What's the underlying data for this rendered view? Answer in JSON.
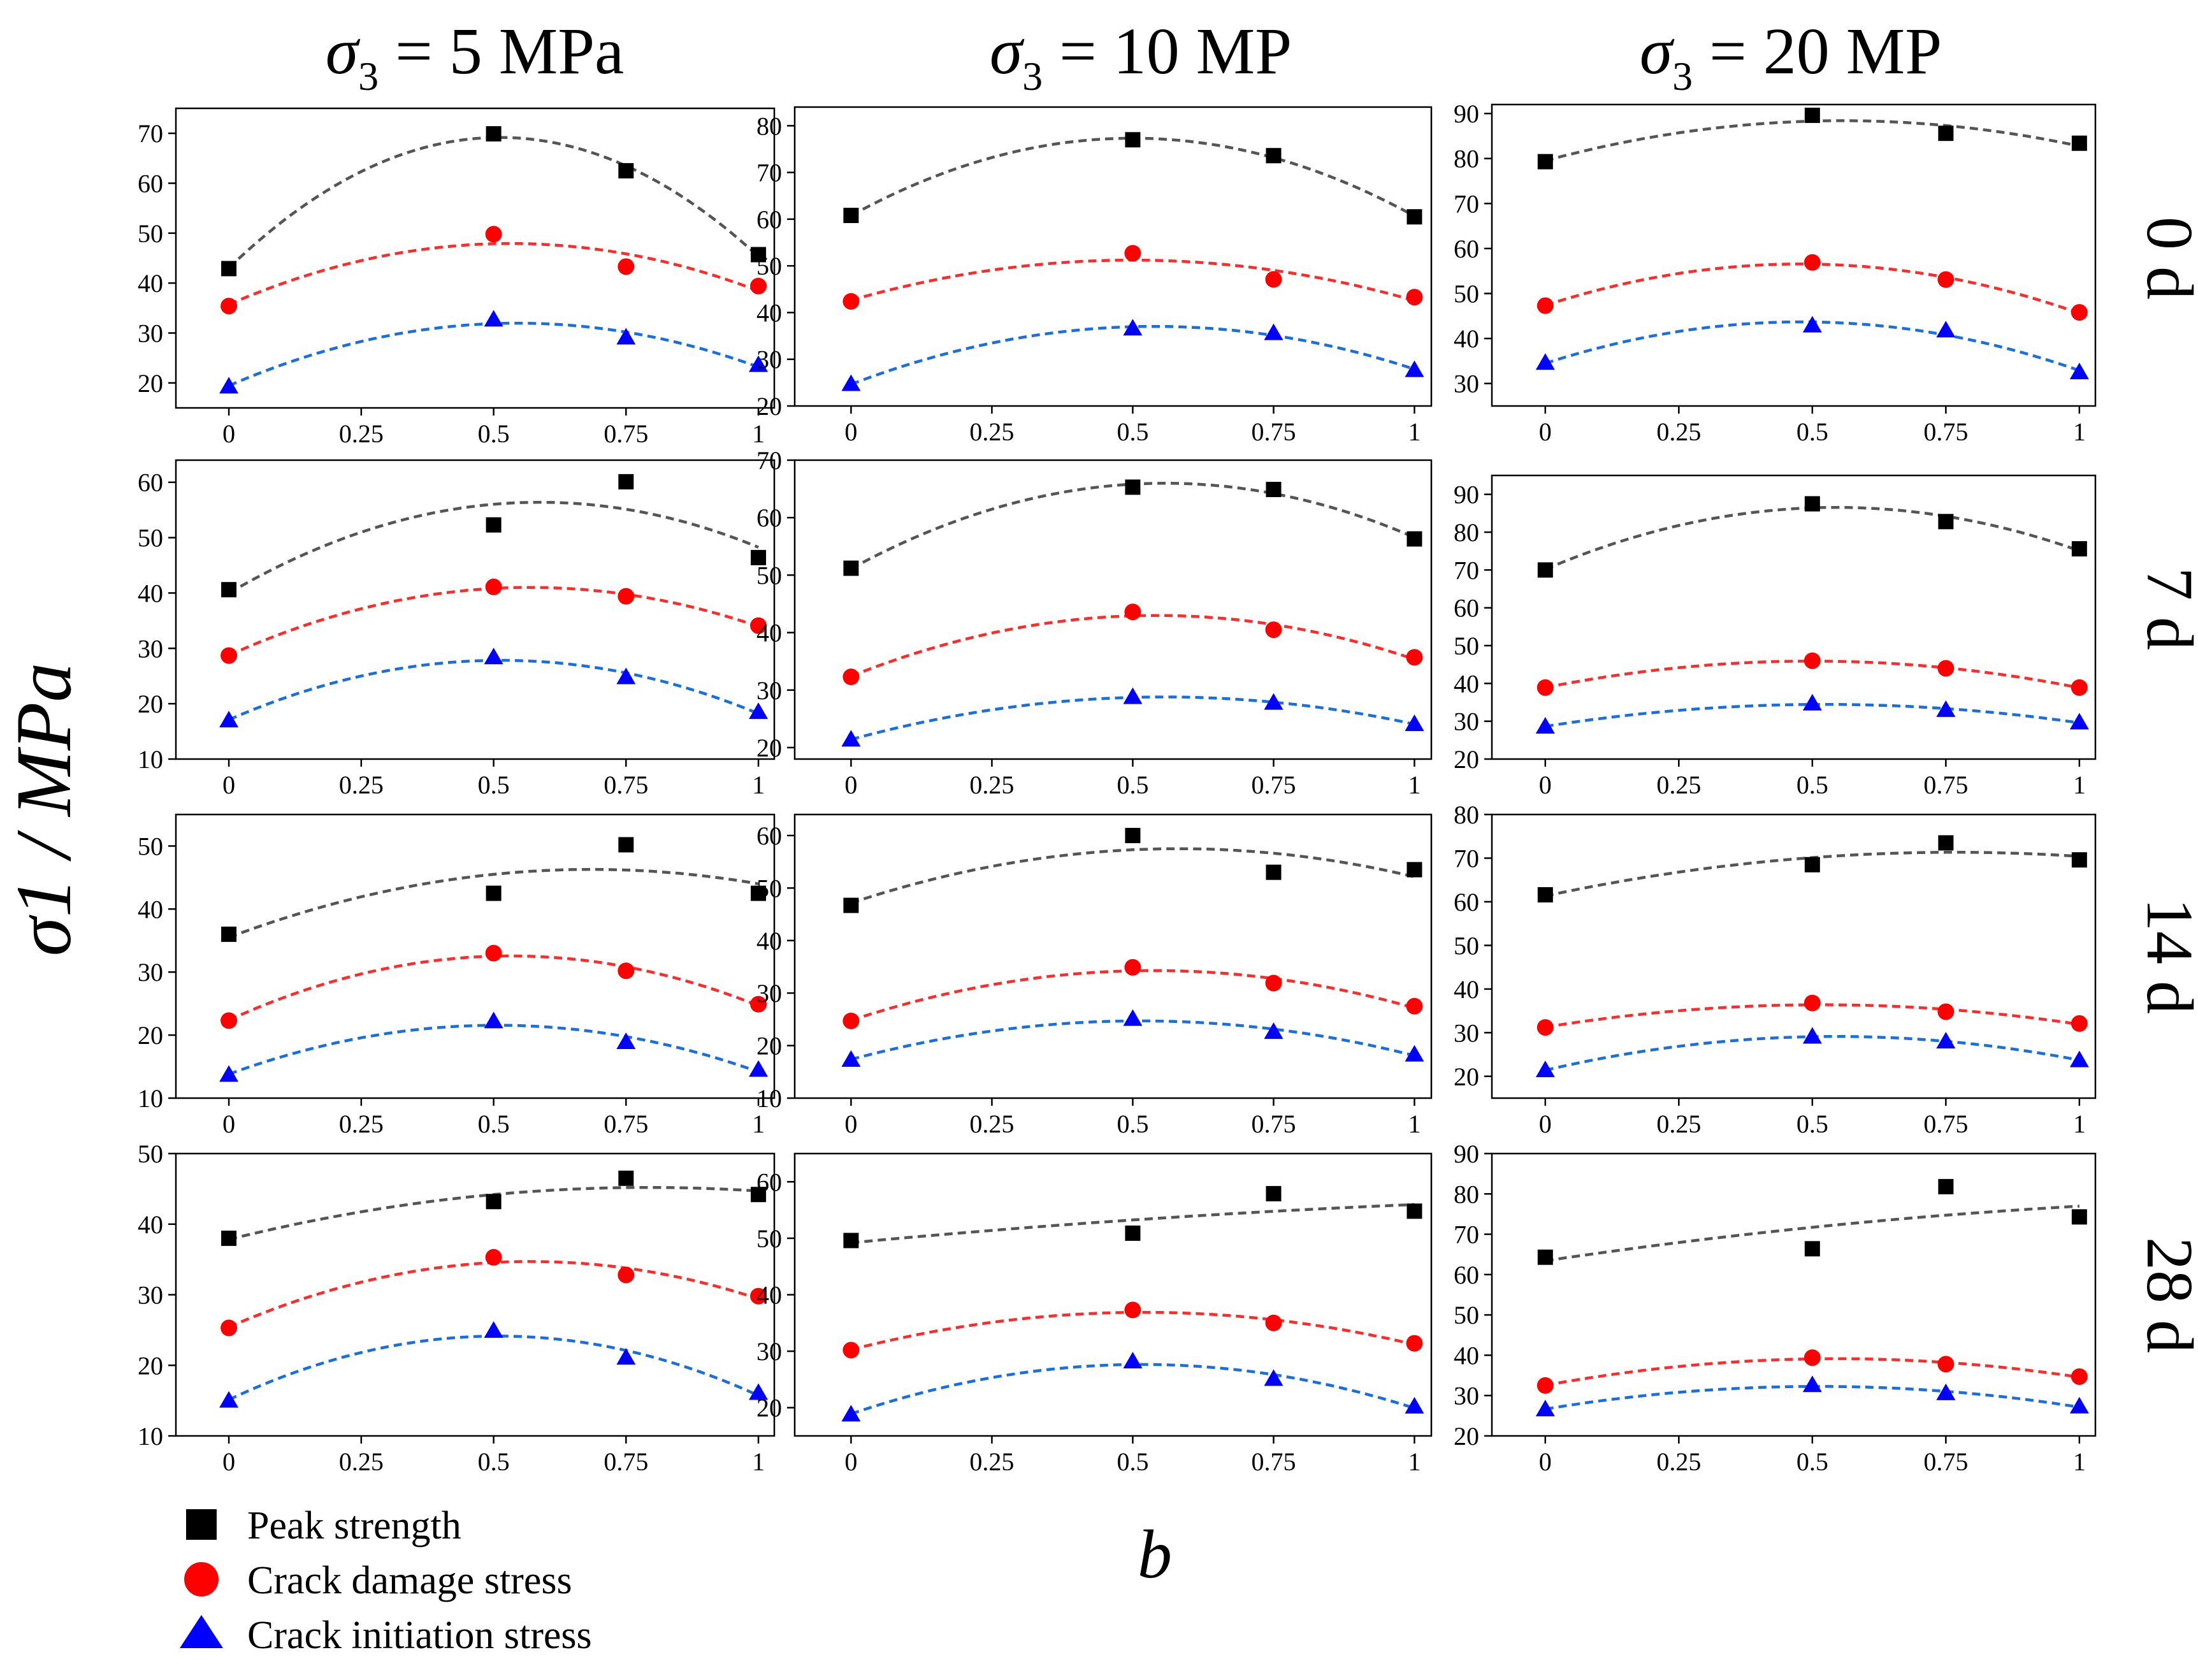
{
  "chart_data": {
    "type": "scatter",
    "layout": "grid",
    "x_label": "b",
    "y_label": "σ1 / MPa",
    "x_ticks": [
      0,
      0.25,
      0.5,
      0.75,
      1
    ],
    "x_tick_labels": [
      "0",
      "0.25",
      "0.5",
      "0.75",
      "1"
    ],
    "x_range": [
      -0.1,
      1.03
    ],
    "columns": [
      {
        "sym": "σ",
        "sub": "3",
        "rest": " = 5 MPa"
      },
      {
        "sym": "σ",
        "sub": "3",
        "rest": " = 10 MP"
      },
      {
        "sym": "σ",
        "sub": "3",
        "rest": " = 20 MP"
      }
    ],
    "rows": [
      "0 d",
      "7 d",
      "14 d",
      "28 d"
    ],
    "legend": [
      {
        "name": "Peak strength",
        "marker": "square",
        "color": "#000000"
      },
      {
        "name": "Crack damage stress",
        "marker": "circle",
        "color": "#ff0000"
      },
      {
        "name": "Crack initiation stress",
        "marker": "triangle",
        "color": "#0000ff"
      }
    ],
    "series_colors": {
      "peak_line": "#555555",
      "damage": "#ff2a2a",
      "initiation": "#1a6fe0"
    },
    "x": [
      0,
      0.5,
      0.75,
      1
    ],
    "panels": [
      {
        "row": 0,
        "col": 0,
        "ylim": [
          15,
          75
        ],
        "yticks": [
          20,
          30,
          40,
          50,
          60,
          70
        ],
        "peak": [
          42.9,
          69.9,
          62.5,
          45.7
        ],
        "damage": [
          35.4,
          49.8,
          43.3,
          39.4
        ],
        "initiation": [
          19.3,
          32.7,
          29.1,
          23.6
        ]
      },
      {
        "row": 0,
        "col": 1,
        "ylim": [
          20,
          84
        ],
        "yticks": [
          20,
          30,
          40,
          50,
          60,
          70,
          80
        ],
        "peak": [
          60.8,
          77.0,
          73.6,
          60.5
        ],
        "damage": [
          42.4,
          52.7,
          47.1,
          43.3
        ],
        "initiation": [
          24.7,
          36.6,
          35.6,
          27.7
        ]
      },
      {
        "row": 0,
        "col": 2,
        "ylim": [
          25,
          92
        ],
        "yticks": [
          30,
          40,
          50,
          60,
          70,
          80,
          90
        ],
        "peak": [
          79.3,
          89.6,
          85.6,
          83.4
        ],
        "damage": [
          47.3,
          56.9,
          53.1,
          45.8
        ],
        "initiation": [
          34.6,
          42.9,
          41.8,
          32.5
        ]
      },
      {
        "row": 1,
        "col": 0,
        "ylim": [
          10,
          64
        ],
        "yticks": [
          10,
          20,
          30,
          40,
          50,
          60
        ],
        "peak": [
          40.6,
          52.3,
          60.1,
          46.4
        ],
        "damage": [
          28.7,
          41.1,
          39.4,
          34.1
        ],
        "initiation": [
          17.0,
          28.4,
          24.8,
          18.5
        ]
      },
      {
        "row": 1,
        "col": 1,
        "ylim": [
          18,
          70
        ],
        "yticks": [
          20,
          30,
          40,
          50,
          60,
          70
        ],
        "peak": [
          51.2,
          65.3,
          64.9,
          56.3
        ],
        "damage": [
          32.3,
          43.6,
          40.5,
          35.7
        ],
        "initiation": [
          21.4,
          28.8,
          27.8,
          24.1
        ]
      },
      {
        "row": 1,
        "col": 2,
        "ylim": [
          20,
          95
        ],
        "yticks": [
          20,
          30,
          40,
          50,
          60,
          70,
          80,
          90
        ],
        "peak": [
          70.0,
          87.5,
          82.8,
          75.6
        ],
        "damage": [
          38.9,
          46.0,
          44.0,
          38.9
        ],
        "initiation": [
          28.6,
          34.7,
          33.0,
          29.7
        ]
      },
      {
        "row": 2,
        "col": 0,
        "ylim": [
          10,
          55
        ],
        "yticks": [
          10,
          20,
          30,
          40,
          50
        ],
        "peak": [
          36.0,
          42.5,
          50.2,
          42.5
        ],
        "damage": [
          22.3,
          33.0,
          30.2,
          24.9
        ],
        "initiation": [
          13.7,
          22.2,
          18.9,
          14.5
        ]
      },
      {
        "row": 2,
        "col": 1,
        "ylim": [
          10,
          64
        ],
        "yticks": [
          10,
          20,
          30,
          40,
          50,
          60
        ],
        "peak": [
          46.7,
          60.0,
          53.0,
          53.5
        ],
        "damage": [
          24.7,
          34.9,
          31.9,
          27.5
        ],
        "initiation": [
          17.3,
          25.1,
          22.6,
          18.3
        ]
      },
      {
        "row": 2,
        "col": 2,
        "ylim": [
          15,
          80
        ],
        "yticks": [
          20,
          30,
          40,
          50,
          60,
          70,
          80
        ],
        "peak": [
          61.6,
          68.5,
          73.5,
          69.6
        ],
        "damage": [
          31.2,
          36.8,
          34.8,
          32.1
        ],
        "initiation": [
          21.4,
          29.1,
          28.0,
          23.7
        ]
      },
      {
        "row": 3,
        "col": 0,
        "ylim": [
          10,
          50
        ],
        "yticks": [
          10,
          20,
          30,
          40,
          50
        ],
        "peak": [
          38.0,
          43.2,
          46.5,
          44.2
        ],
        "damage": [
          25.3,
          35.3,
          32.8,
          29.8
        ],
        "initiation": [
          15.0,
          24.9,
          21.1,
          16.1
        ]
      },
      {
        "row": 3,
        "col": 1,
        "ylim": [
          15,
          65
        ],
        "yticks": [
          20,
          30,
          40,
          50,
          60
        ],
        "peak": [
          49.6,
          50.9,
          57.9,
          54.8
        ],
        "damage": [
          30.2,
          37.3,
          35.0,
          31.4
        ],
        "initiation": [
          18.8,
          28.2,
          25.1,
          20.2
        ]
      },
      {
        "row": 3,
        "col": 2,
        "ylim": [
          20,
          90
        ],
        "yticks": [
          20,
          30,
          40,
          50,
          60,
          70,
          80,
          90
        ],
        "peak": [
          64.3,
          66.4,
          81.8,
          74.3
        ],
        "damage": [
          32.5,
          39.4,
          37.8,
          34.7
        ],
        "initiation": [
          26.6,
          32.6,
          30.6,
          27.3
        ]
      }
    ]
  }
}
